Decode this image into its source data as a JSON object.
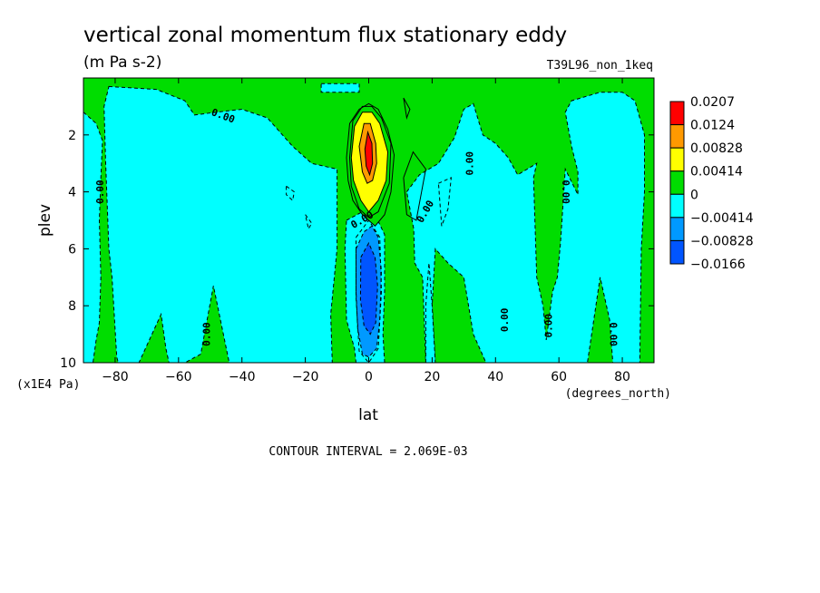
{
  "chart_data": {
    "type": "heatmap",
    "title": "vertical zonal momentum flux stationary eddy",
    "units": "(m Pa s-2)",
    "run_label": "T39L96_non_1keq",
    "xlabel": "lat",
    "xunits": "(degrees_north)",
    "ylabel": "plev",
    "yunits": "(x1E4 Pa)",
    "xlim": [
      -90,
      90
    ],
    "ylim": [
      0,
      10
    ],
    "y_inverted": true,
    "x_ticks": [
      -80,
      -60,
      -40,
      -20,
      0,
      20,
      40,
      60,
      80
    ],
    "x_tick_labels": [
      "−80",
      "−60",
      "−40",
      "−20",
      "0",
      "20",
      "40",
      "60",
      "80"
    ],
    "y_ticks": [
      2,
      4,
      6,
      8,
      10
    ],
    "y_tick_labels": [
      "2",
      "4",
      "6",
      "8",
      "10"
    ],
    "contour_interval_text": "CONTOUR INTERVAL = 2.069E-03",
    "contour_label": "0.00",
    "colorbar": {
      "colors": [
        "#ff0000",
        "#ff9900",
        "#ffff00",
        "#00dd00",
        "#00ffff",
        "#0099ff",
        "#0055ff"
      ],
      "labels": [
        "0.0207",
        "0.0124",
        "0.00828",
        "0.00414",
        "0",
        "−0.00414",
        "−0.00828",
        "−0.0166"
      ]
    },
    "background_color": "#00dd00",
    "regions": [
      {
        "sign": "negative",
        "level": 1,
        "points": [
          [
            -90,
            1.2
          ],
          [
            -86,
            1.6
          ],
          [
            -84,
            2.2
          ],
          [
            -84.5,
            3.5
          ],
          [
            -85,
            5
          ],
          [
            -84.5,
            7
          ],
          [
            -85,
            8.6
          ],
          [
            -86,
            9.2
          ],
          [
            -87,
            10
          ],
          [
            -90,
            10
          ]
        ]
      },
      {
        "sign": "negative",
        "level": 1,
        "points": [
          [
            -82,
            0.3
          ],
          [
            -67,
            0.4
          ],
          [
            -58,
            0.8
          ],
          [
            -55,
            1.3
          ],
          [
            -48,
            1.2
          ],
          [
            -40,
            1.1
          ],
          [
            -32,
            1.4
          ],
          [
            -24,
            2.4
          ],
          [
            -18,
            3.0
          ],
          [
            -10,
            3.2
          ],
          [
            -10,
            6.0
          ],
          [
            -12,
            8.3
          ],
          [
            -11.5,
            10
          ],
          [
            -44,
            10
          ],
          [
            -49,
            7.3
          ],
          [
            -53,
            9.7
          ],
          [
            -58,
            10
          ],
          [
            -63,
            10
          ],
          [
            -64,
            9.5
          ],
          [
            -65.5,
            8.3
          ],
          [
            -72.5,
            10
          ],
          [
            -79,
            10
          ],
          [
            -79.5,
            9.8
          ],
          [
            -81,
            7.0
          ],
          [
            -82,
            6.0
          ],
          [
            -83,
            3.0
          ],
          [
            -83.5,
            1.0
          ]
        ]
      },
      {
        "sign": "negative",
        "level": 1,
        "points": [
          [
            -15,
            0.2
          ],
          [
            -3,
            0.2
          ],
          [
            -3,
            0.5
          ],
          [
            -15,
            0.5
          ]
        ]
      },
      {
        "sign": "negative",
        "level": 1,
        "points": [
          [
            -7,
            5.0
          ],
          [
            -2,
            4.7
          ],
          [
            2,
            4.8
          ],
          [
            5,
            5.5
          ],
          [
            5,
            7.5
          ],
          [
            4.5,
            9
          ],
          [
            5,
            10
          ],
          [
            -4,
            10
          ],
          [
            -4.5,
            9.5
          ],
          [
            -7,
            8.5
          ],
          [
            -7.5,
            6.0
          ]
        ]
      },
      {
        "sign": "negative",
        "level": 1,
        "points": [
          [
            12,
            4.0
          ],
          [
            16,
            3.4
          ],
          [
            22,
            3.0
          ],
          [
            27,
            2.1
          ],
          [
            30,
            1.1
          ],
          [
            33,
            0.9
          ],
          [
            36,
            2.0
          ],
          [
            40,
            2.3
          ],
          [
            44,
            2.8
          ],
          [
            47,
            3.4
          ],
          [
            50,
            3.2
          ],
          [
            53,
            3.0
          ],
          [
            52,
            3.5
          ],
          [
            53,
            7.0
          ],
          [
            55,
            8.0
          ],
          [
            56,
            9.2
          ],
          [
            58,
            7.5
          ],
          [
            59.5,
            7.0
          ],
          [
            60.5,
            5.8
          ],
          [
            62,
            3.2
          ],
          [
            66,
            4.1
          ],
          [
            66,
            3.3
          ],
          [
            64,
            2.4
          ],
          [
            62,
            1.2
          ],
          [
            64,
            0.8
          ],
          [
            73,
            0.5
          ],
          [
            80,
            0.5
          ],
          [
            84,
            0.8
          ],
          [
            87,
            2.0
          ],
          [
            87,
            4.0
          ],
          [
            86,
            6.0
          ],
          [
            85.5,
            10
          ],
          [
            77,
            10
          ],
          [
            76,
            8.5
          ],
          [
            73,
            7.0
          ],
          [
            69,
            10
          ],
          [
            65,
            10
          ],
          [
            62,
            10
          ],
          [
            58,
            10
          ],
          [
            55,
            10
          ],
          [
            51,
            10
          ],
          [
            45,
            10
          ],
          [
            40,
            10
          ],
          [
            37,
            10
          ],
          [
            33,
            9.0
          ],
          [
            30,
            7.0
          ],
          [
            25,
            6.5
          ],
          [
            21,
            6.0
          ],
          [
            20,
            8.0
          ],
          [
            21,
            10
          ],
          [
            18,
            10
          ],
          [
            17,
            7.0
          ],
          [
            14.5,
            6.5
          ],
          [
            14.2,
            5.3
          ]
        ]
      },
      {
        "sign": "negative",
        "level": 1,
        "points": [
          [
            18,
            10
          ],
          [
            18,
            8.0
          ],
          [
            19,
            6.5
          ],
          [
            20,
            8.0
          ],
          [
            21,
            10
          ]
        ]
      },
      {
        "sign": "negative",
        "level": 2,
        "points": [
          [
            -4,
            6.0
          ],
          [
            -1.5,
            5.4
          ],
          [
            1,
            5.2
          ],
          [
            3,
            5.6
          ],
          [
            4,
            6.8
          ],
          [
            3.5,
            8.5
          ],
          [
            2.5,
            9.5
          ],
          [
            0,
            9.8
          ],
          [
            -2,
            9.7
          ],
          [
            -3.5,
            8.8
          ],
          [
            -4,
            7.5
          ]
        ]
      },
      {
        "sign": "negative",
        "level": 3,
        "points": [
          [
            -2.5,
            6.3
          ],
          [
            0,
            5.8
          ],
          [
            2,
            6.3
          ],
          [
            2.8,
            7.3
          ],
          [
            2.2,
            8.6
          ],
          [
            0.5,
            9.0
          ],
          [
            -1.5,
            8.7
          ],
          [
            -2.6,
            7.8
          ]
        ]
      },
      {
        "sign": "positive",
        "level": 1,
        "points": [
          [
            -7,
            2.8
          ],
          [
            -6,
            1.6
          ],
          [
            -3,
            1.1
          ],
          [
            0,
            0.9
          ],
          [
            3,
            1.1
          ],
          [
            6,
            1.8
          ],
          [
            8,
            2.7
          ],
          [
            7,
            4.0
          ],
          [
            5,
            4.8
          ],
          [
            2,
            5.2
          ],
          [
            0,
            5.0
          ],
          [
            -2,
            4.8
          ],
          [
            -5,
            4.3
          ],
          [
            -6.5,
            3.6
          ]
        ]
      },
      {
        "sign": "positive",
        "level": 2,
        "points": [
          [
            -5.5,
            2.8
          ],
          [
            -4.5,
            1.7
          ],
          [
            -2,
            1.2
          ],
          [
            1,
            1.2
          ],
          [
            3.5,
            1.6
          ],
          [
            6,
            2.6
          ],
          [
            5.5,
            3.6
          ],
          [
            3,
            4.3
          ],
          [
            0,
            4.7
          ],
          [
            -2.5,
            4.3
          ],
          [
            -4.8,
            3.6
          ]
        ]
      },
      {
        "sign": "positive",
        "level": 3,
        "points": [
          [
            -3,
            2.4
          ],
          [
            -1.5,
            1.6
          ],
          [
            0.5,
            1.6
          ],
          [
            2.2,
            2.3
          ],
          [
            2.5,
            3.0
          ],
          [
            1.2,
            3.6
          ],
          [
            -0.5,
            3.7
          ],
          [
            -2,
            3.3
          ]
        ]
      },
      {
        "sign": "positive",
        "level": 4,
        "points": [
          [
            -1.2,
            2.5
          ],
          [
            -0.3,
            1.9
          ],
          [
            1,
            2.3
          ],
          [
            1.2,
            3.0
          ],
          [
            0.3,
            3.4
          ],
          [
            -0.8,
            3.1
          ]
        ]
      }
    ],
    "contour_lines": [
      {
        "style": "solid",
        "points": [
          [
            -6,
            2.8
          ],
          [
            -5,
            1.5
          ],
          [
            -2,
            1.0
          ],
          [
            1,
            1.0
          ],
          [
            4,
            1.4
          ],
          [
            7,
            2.3
          ],
          [
            6.5,
            3.7
          ],
          [
            3,
            4.7
          ],
          [
            0,
            4.9
          ],
          [
            -3,
            4.6
          ],
          [
            -5.5,
            3.8
          ],
          [
            -6,
            2.8
          ]
        ]
      },
      {
        "style": "solid",
        "points": [
          [
            11,
            3.5
          ],
          [
            14,
            2.6
          ],
          [
            18,
            3.2
          ],
          [
            15,
            5.0
          ],
          [
            12,
            4.8
          ],
          [
            11,
            3.5
          ]
        ]
      },
      {
        "style": "solid",
        "points": [
          [
            11,
            0.7
          ],
          [
            13,
            1.1
          ],
          [
            12,
            1.4
          ],
          [
            11,
            0.7
          ]
        ]
      },
      {
        "style": "dashed",
        "points": [
          [
            -4,
            5.6
          ],
          [
            0,
            5.0
          ],
          [
            3.5,
            5.6
          ],
          [
            4,
            7.5
          ],
          [
            3,
            9.5
          ],
          [
            0,
            10
          ],
          [
            -3,
            9.6
          ],
          [
            -4,
            7.7
          ],
          [
            -4,
            5.6
          ]
        ]
      },
      {
        "style": "dashed",
        "points": [
          [
            -26,
            3.8
          ],
          [
            -23.5,
            4.0
          ],
          [
            -24,
            4.3
          ],
          [
            -26,
            4.1
          ],
          [
            -26,
            3.8
          ]
        ]
      },
      {
        "style": "dashed",
        "points": [
          [
            -20,
            4.8
          ],
          [
            -18,
            5.1
          ],
          [
            -19,
            5.3
          ],
          [
            -20,
            4.8
          ]
        ]
      },
      {
        "style": "dashed",
        "points": [
          [
            22,
            3.7
          ],
          [
            26,
            3.5
          ],
          [
            25,
            4.6
          ],
          [
            23,
            5.2
          ],
          [
            22,
            3.7
          ]
        ]
      }
    ],
    "contour_labels": [
      {
        "x": -46,
        "y": 1.35,
        "rotate": 20
      },
      {
        "x": -84.5,
        "y": 4.0,
        "rotate": -90
      },
      {
        "x": -51,
        "y": 9.0,
        "rotate": -90
      },
      {
        "x": -2,
        "y": 5.0,
        "rotate": -30
      },
      {
        "x": 18,
        "y": 4.7,
        "rotate": -60
      },
      {
        "x": 32,
        "y": 3.0,
        "rotate": -90
      },
      {
        "x": 43,
        "y": 8.5,
        "rotate": -90
      },
      {
        "x": 57,
        "y": 8.7,
        "rotate": -90
      },
      {
        "x": 62,
        "y": 4.0,
        "rotate": 90
      },
      {
        "x": 77,
        "y": 9.0,
        "rotate": 90
      }
    ]
  }
}
